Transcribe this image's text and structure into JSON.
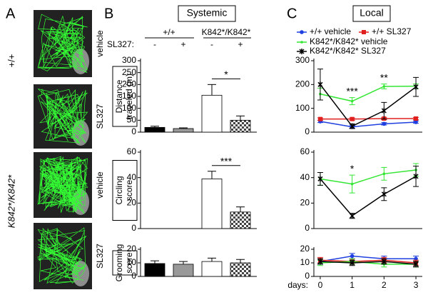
{
  "panel_labels": [
    "A",
    "B",
    "C"
  ],
  "panel_a": {
    "genotypes": [
      "+/+",
      "K842*/K842*"
    ],
    "treatments": [
      "vehicle",
      "SL327",
      "vehicle",
      "SL327"
    ]
  },
  "panel_b": {
    "title": "Systemic",
    "groups": [
      "+/+",
      "K842*/K842*"
    ],
    "factor": "SL327:"
  },
  "panel_c": {
    "title": "Local"
  },
  "chart_data": [
    {
      "type": "bar",
      "categories": [
        "-",
        "+",
        "-",
        "+"
      ],
      "ylabel": [
        "Distance",
        "traveled (m)"
      ],
      "values": [
        20,
        15,
        155,
        50
      ],
      "errors": [
        5,
        3,
        45,
        18
      ],
      "colors": [
        "#000000",
        "#999999",
        "#ffffff",
        "#ffffff"
      ],
      "checkered": [
        false,
        false,
        false,
        true
      ],
      "ylim": [
        0,
        300
      ],
      "yticks": [
        0,
        50,
        100,
        150,
        200,
        250,
        300
      ],
      "annotations": [
        "*"
      ]
    },
    {
      "type": "bar",
      "ylabel": [
        "Circling",
        "score"
      ],
      "values": [
        0,
        0,
        39,
        13
      ],
      "errors": [
        0,
        0,
        6,
        4
      ],
      "colors": [
        "#000000",
        "#999999",
        "#ffffff",
        "#ffffff"
      ],
      "checkered": [
        false,
        false,
        false,
        true
      ],
      "ylim": [
        0,
        60
      ],
      "yticks": [
        0,
        20,
        40,
        60
      ],
      "annotations": [
        "***"
      ]
    },
    {
      "type": "bar",
      "ylabel": [
        "Grooming",
        "score"
      ],
      "values": [
        9.5,
        9,
        11,
        10
      ],
      "errors": [
        2,
        2,
        2.5,
        2.5
      ],
      "colors": [
        "#000000",
        "#999999",
        "#ffffff",
        "#ffffff"
      ],
      "checkered": [
        false,
        false,
        false,
        true
      ],
      "ylim": [
        0,
        20
      ],
      "yticks": [
        0,
        10,
        20
      ]
    },
    {
      "type": "line",
      "x": [
        0,
        1,
        2,
        3
      ],
      "xlim": [
        -0.2,
        3.2
      ],
      "ylim": [
        0,
        300
      ],
      "yticks": [
        0,
        100,
        200,
        300
      ],
      "series": [
        {
          "name": "+/+ vehicle",
          "color": "#1f3fe0",
          "marker": "circle",
          "values": [
            45,
            22,
            35,
            42
          ],
          "errors": [
            5,
            5,
            5,
            5
          ]
        },
        {
          "name": "+/+ SL327",
          "color": "#e0201f",
          "marker": "square",
          "values": [
            55,
            55,
            57,
            57
          ],
          "errors": [
            5,
            5,
            5,
            5
          ]
        },
        {
          "name": "K842*/K842* vehicle",
          "color": "#33e633",
          "marker": "dot",
          "values": [
            160,
            130,
            192,
            193
          ],
          "errors": [
            25,
            15,
            10,
            10
          ]
        },
        {
          "name": "K842*/K842* SL327",
          "color": "#000000",
          "marker": "star",
          "values": [
            200,
            25,
            90,
            190
          ],
          "errors": [
            65,
            10,
            35,
            40
          ]
        }
      ],
      "annotations": [
        {
          "text": "***",
          "x": 1
        },
        {
          "text": "**",
          "x": 2
        }
      ]
    },
    {
      "type": "line",
      "x": [
        0,
        1,
        2,
        3
      ],
      "xlim": [
        -0.2,
        3.2
      ],
      "ylim": [
        0,
        60
      ],
      "yticks": [
        0,
        20,
        40,
        60
      ],
      "series": [
        {
          "color": "#33e633",
          "marker": "dot",
          "values": [
            39,
            35,
            43,
            46
          ],
          "errors": [
            5,
            7,
            5,
            5
          ]
        },
        {
          "color": "#000000",
          "marker": "star",
          "values": [
            39,
            10,
            27,
            41
          ],
          "errors": [
            5,
            2,
            5,
            8
          ]
        }
      ],
      "annotations": [
        {
          "text": "*",
          "x": 1
        }
      ]
    },
    {
      "type": "line",
      "x": [
        0,
        1,
        2,
        3
      ],
      "xlim": [
        -0.2,
        3.2
      ],
      "ylim": [
        0,
        20
      ],
      "yticks": [
        0,
        10,
        20
      ],
      "xticks": [
        0,
        1,
        2,
        3
      ],
      "xlabel": "days:",
      "series": [
        {
          "color": "#1f3fe0",
          "marker": "circle",
          "values": [
            11,
            15,
            13,
            13
          ],
          "errors": [
            2,
            2,
            2,
            2
          ]
        },
        {
          "color": "#e0201f",
          "marker": "square",
          "values": [
            12,
            11,
            12,
            10
          ],
          "errors": [
            2,
            2,
            2,
            2
          ]
        },
        {
          "color": "#33e633",
          "marker": "dot",
          "values": [
            10,
            11,
            9,
            9
          ],
          "errors": [
            2,
            2,
            2,
            2
          ]
        },
        {
          "color": "#000000",
          "marker": "star",
          "values": [
            11,
            10,
            11,
            9
          ],
          "errors": [
            2,
            2,
            2,
            2
          ]
        }
      ]
    }
  ]
}
